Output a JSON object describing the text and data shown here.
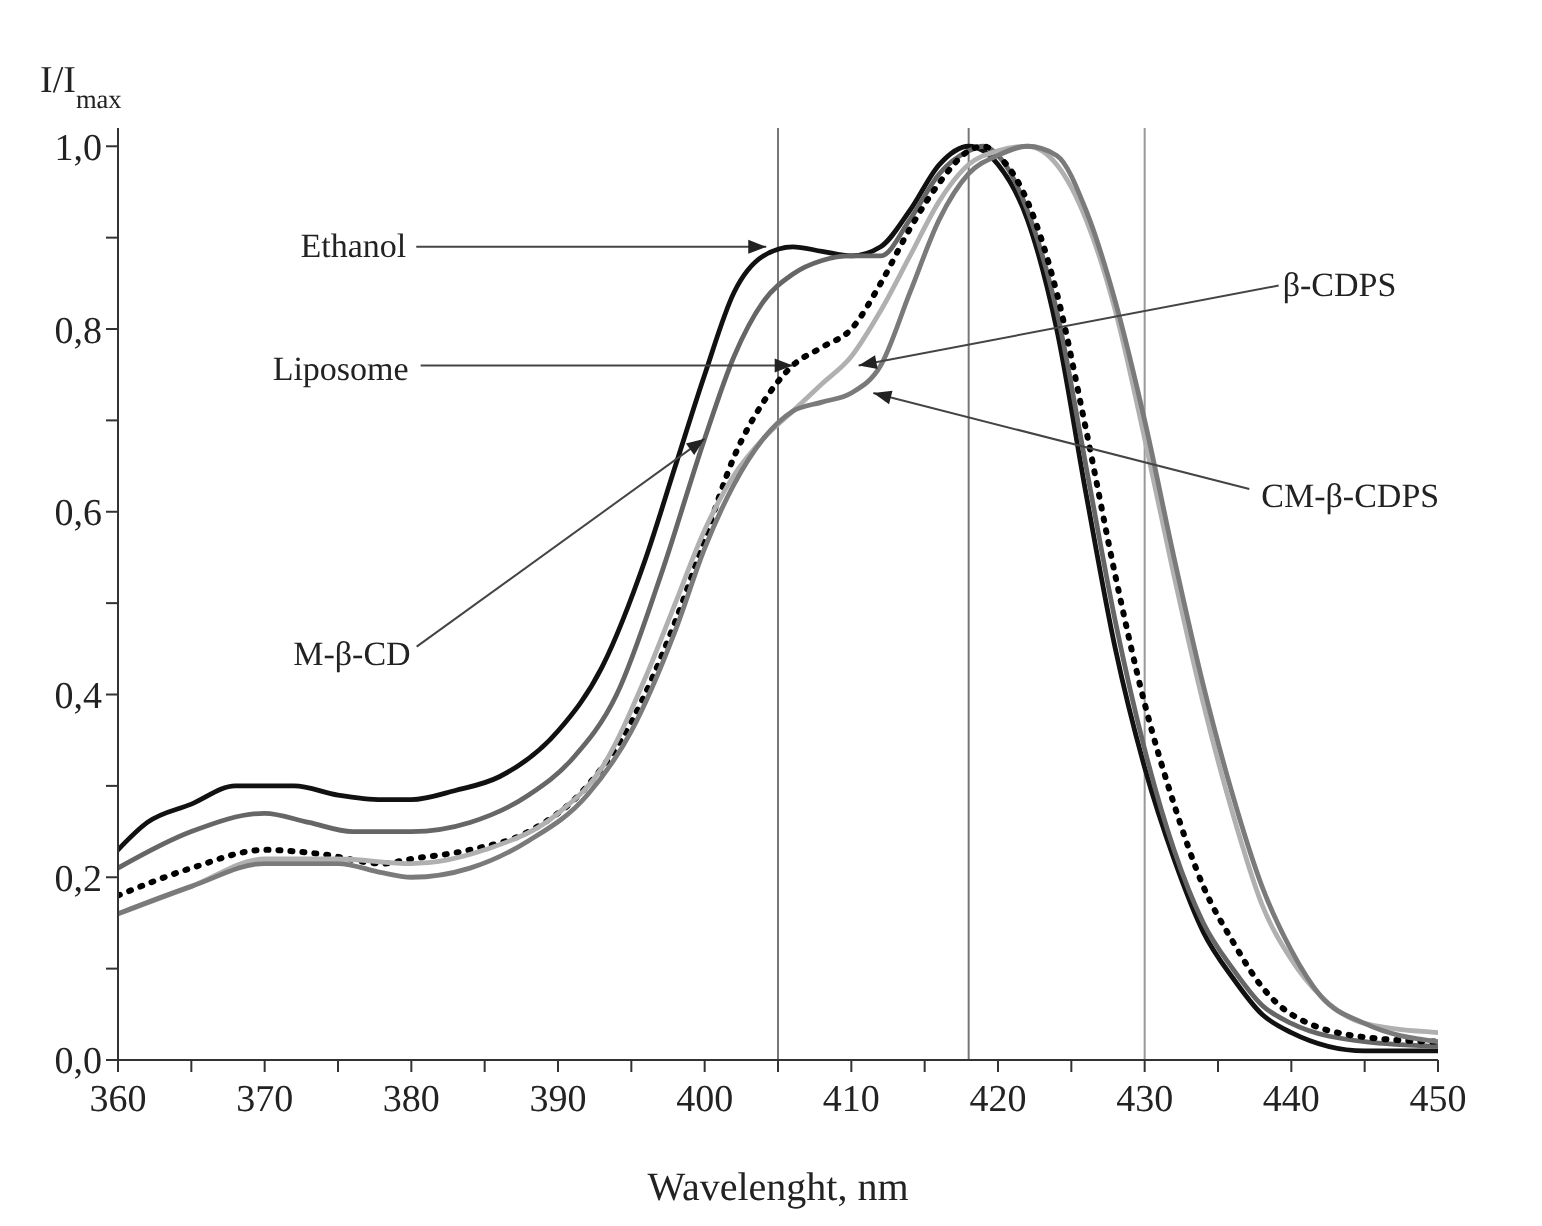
{
  "chart_data": {
    "type": "line",
    "xlabel": "Wavelenght, nm",
    "ylabel": "I/I$_{max}$",
    "xlim": [
      360,
      450
    ],
    "xticks": [
      360,
      {
        "value": 365,
        "label": null
      },
      370,
      {
        "value": 375,
        "label": null
      },
      380,
      {
        "value": 385,
        "label": null
      },
      390,
      {
        "value": 395,
        "label": null
      },
      400,
      {
        "value": 405,
        "label": null
      },
      410,
      {
        "value": 415,
        "label": null
      },
      420,
      {
        "value": 425,
        "label": null
      },
      430,
      {
        "value": 435,
        "label": null
      },
      440,
      {
        "value": 445,
        "label": null
      },
      450
    ],
    "ylim": [
      0,
      1.02
    ],
    "yticks": [
      {
        "value": 0,
        "label": "0,0"
      },
      {
        "value": 0.1,
        "label": null
      },
      {
        "value": 0.2,
        "label": "0,2"
      },
      {
        "value": 0.3,
        "label": null
      },
      {
        "value": 0.4,
        "label": "0,4"
      },
      {
        "value": 0.5,
        "label": null
      },
      {
        "value": 0.6,
        "label": "0,6"
      },
      {
        "value": 0.7,
        "label": null
      },
      {
        "value": 0.8,
        "label": "0,8"
      },
      {
        "value": 0.9,
        "label": null
      },
      {
        "value": 1.0,
        "label": "1,0"
      }
    ],
    "marker": "none",
    "series": [
      {
        "color": "#111111",
        "line_style": "solid",
        "x": [
          360,
          362,
          365,
          368,
          372,
          375,
          378,
          380,
          383,
          386,
          390,
          393,
          396,
          398,
          400,
          402,
          404,
          406,
          408,
          410,
          412,
          414,
          416,
          418,
          420,
          422,
          424,
          426,
          428,
          430,
          432,
          434,
          436,
          438,
          440,
          445,
          450
        ],
        "values": [
          0.23,
          0.26,
          0.28,
          0.3,
          0.3,
          0.29,
          0.285,
          0.285,
          0.295,
          0.31,
          0.36,
          0.43,
          0.55,
          0.65,
          0.75,
          0.84,
          0.88,
          0.89,
          0.885,
          0.88,
          0.89,
          0.93,
          0.98,
          1.0,
          0.98,
          0.92,
          0.8,
          0.62,
          0.45,
          0.32,
          0.22,
          0.14,
          0.09,
          0.05,
          0.03,
          0.01,
          0.01
        ]
      },
      {
        "color": "#666666",
        "line_style": "solid",
        "x": [
          360,
          365,
          370,
          373,
          376,
          380,
          384,
          388,
          391,
          394,
          397,
          400,
          402,
          404,
          406,
          408,
          410,
          412,
          414,
          416,
          418,
          419,
          420,
          422,
          424,
          426,
          428,
          430,
          432,
          434,
          436,
          438,
          440,
          445,
          450
        ],
        "values": [
          0.21,
          0.25,
          0.27,
          0.26,
          0.25,
          0.25,
          0.26,
          0.29,
          0.33,
          0.4,
          0.53,
          0.68,
          0.77,
          0.83,
          0.86,
          0.875,
          0.88,
          0.88,
          0.92,
          0.97,
          0.995,
          1.0,
          0.99,
          0.93,
          0.82,
          0.65,
          0.48,
          0.34,
          0.23,
          0.15,
          0.1,
          0.06,
          0.04,
          0.02,
          0.015
        ]
      },
      {
        "color": "#000000",
        "line_style": "dotted",
        "x": [
          360,
          365,
          370,
          374,
          378,
          380,
          384,
          388,
          392,
          395,
          398,
          400,
          402,
          404,
          406,
          408,
          410,
          412,
          414,
          416,
          418,
          419,
          420,
          422,
          424,
          426,
          428,
          430,
          432,
          434,
          436,
          438,
          440,
          445,
          450
        ],
        "values": [
          0.18,
          0.21,
          0.23,
          0.225,
          0.215,
          0.22,
          0.23,
          0.25,
          0.3,
          0.37,
          0.48,
          0.57,
          0.66,
          0.72,
          0.76,
          0.78,
          0.8,
          0.85,
          0.91,
          0.96,
          0.995,
          1.0,
          0.99,
          0.94,
          0.84,
          0.69,
          0.53,
          0.39,
          0.28,
          0.19,
          0.13,
          0.08,
          0.05,
          0.025,
          0.02
        ]
      },
      {
        "color": "#b0b0b0",
        "line_style": "solid",
        "x": [
          360,
          365,
          370,
          375,
          380,
          385,
          390,
          393,
          396,
          398,
          400,
          402,
          404,
          406,
          408,
          410,
          412,
          414,
          416,
          418,
          420,
          422,
          424,
          426,
          428,
          430,
          432,
          434,
          436,
          438,
          440,
          442,
          445,
          450
        ],
        "values": [
          0.16,
          0.19,
          0.22,
          0.22,
          0.215,
          0.23,
          0.27,
          0.32,
          0.42,
          0.5,
          0.58,
          0.64,
          0.68,
          0.71,
          0.74,
          0.77,
          0.82,
          0.88,
          0.94,
          0.98,
          0.995,
          1.0,
          0.98,
          0.92,
          0.82,
          0.68,
          0.53,
          0.39,
          0.27,
          0.17,
          0.11,
          0.07,
          0.04,
          0.03
        ]
      },
      {
        "color": "#7a7a7a",
        "line_style": "solid",
        "x": [
          360,
          365,
          370,
          375,
          378,
          380,
          384,
          388,
          392,
          395,
          398,
          400,
          402,
          404,
          406,
          408,
          410,
          412,
          414,
          416,
          418,
          420,
          422,
          424,
          426,
          428,
          430,
          432,
          434,
          436,
          438,
          440,
          442,
          445,
          450
        ],
        "values": [
          0.16,
          0.19,
          0.215,
          0.215,
          0.205,
          0.2,
          0.21,
          0.24,
          0.29,
          0.36,
          0.47,
          0.56,
          0.63,
          0.68,
          0.71,
          0.72,
          0.73,
          0.76,
          0.84,
          0.92,
          0.97,
          0.99,
          1.0,
          0.99,
          0.93,
          0.83,
          0.7,
          0.55,
          0.41,
          0.29,
          0.19,
          0.12,
          0.07,
          0.04,
          0.02
        ]
      }
    ],
    "ref_lines": [
      {
        "axis": "x",
        "value": 405,
        "color": "#777777"
      },
      {
        "axis": "x",
        "value": 418,
        "color": "#777777"
      },
      {
        "axis": "x",
        "value": 430,
        "color": "#999999"
      }
    ],
    "annotations": [
      {
        "text": "Ethanol",
        "x": 404.2,
        "y": 0.89
      },
      {
        "text": "Liposome",
        "x": 406,
        "y": 0.76
      },
      {
        "text": "M-β-CD",
        "x": 400,
        "y": 0.68
      },
      {
        "text": "β-CDPS",
        "x": 410.5,
        "y": 0.76
      },
      {
        "text": "CM-β-CDPS",
        "x": 411.5,
        "y": 0.73
      }
    ]
  }
}
